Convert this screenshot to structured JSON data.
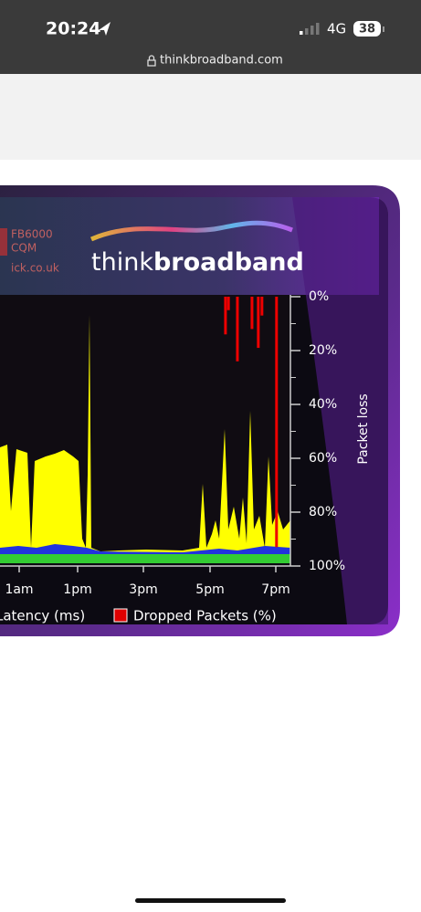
{
  "status_bar": {
    "time": "20:24",
    "network": "4G",
    "battery": "38"
  },
  "browser": {
    "url": "thinkbroadband.com"
  },
  "chart": {
    "source_lines": [
      "FB6000",
      "CQM",
      "ick.co.uk"
    ],
    "logo": {
      "think": "think",
      "broadband": "broadband"
    },
    "y_axis_label": "Packet loss",
    "yticks": [
      {
        "value": 0,
        "label": "0%"
      },
      {
        "value": 20,
        "label": "20%"
      },
      {
        "value": 40,
        "label": "40%"
      },
      {
        "value": 60,
        "label": "60%"
      },
      {
        "value": 80,
        "label": "80%"
      },
      {
        "value": 100,
        "label": "100%"
      }
    ],
    "ylim": [
      0,
      100
    ],
    "x_labels": [
      "1am",
      "1pm",
      "3pm",
      "5pm",
      "7pm"
    ],
    "dropped_packets": {
      "x": [
        17.46,
        17.55,
        17.82,
        18.26,
        18.45,
        18.56,
        19.0
      ],
      "values": [
        14,
        5,
        24,
        12,
        19,
        7,
        93
      ]
    },
    "legend": [
      "Latency (ms)",
      "Dropped Packets (%)"
    ]
  }
}
